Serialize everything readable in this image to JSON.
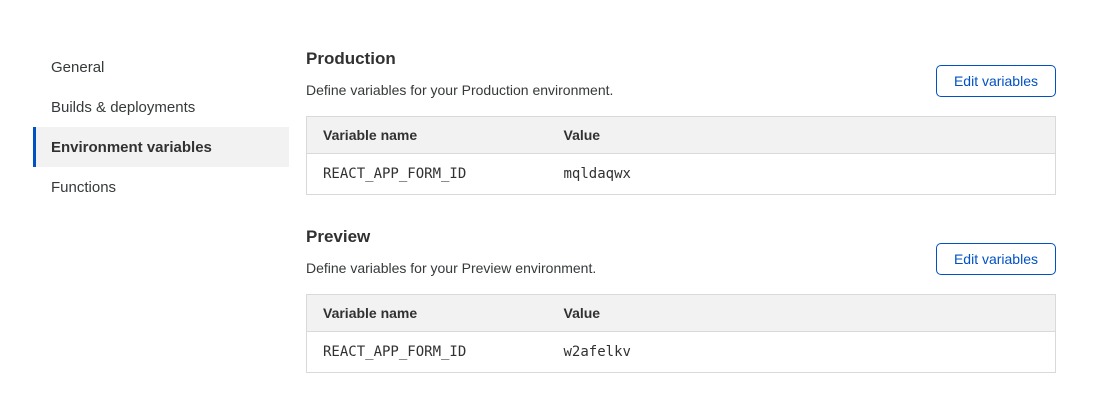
{
  "colors": {
    "accent_blue": "#0051c3",
    "selected_nav_bg": "#f2f2f2",
    "table_header_bg": "#f2f2f2",
    "table_border": "#d9d9d9",
    "heading_text": "#313131",
    "body_text": "#36393a"
  },
  "sidebar": {
    "items": [
      {
        "label": "General",
        "selected": false
      },
      {
        "label": "Builds & deployments",
        "selected": false
      },
      {
        "label": "Environment variables",
        "selected": true
      },
      {
        "label": "Functions",
        "selected": false
      }
    ]
  },
  "sections": [
    {
      "title": "Production",
      "description": "Define variables for your Production environment.",
      "button_label": "Edit variables",
      "table": {
        "columns": [
          "Variable name",
          "Value"
        ],
        "rows": [
          {
            "name": "REACT_APP_FORM_ID",
            "value": "mqldaqwx"
          }
        ]
      }
    },
    {
      "title": "Preview",
      "description": "Define variables for your Preview environment.",
      "button_label": "Edit variables",
      "table": {
        "columns": [
          "Variable name",
          "Value"
        ],
        "rows": [
          {
            "name": "REACT_APP_FORM_ID",
            "value": "w2afelkv"
          }
        ]
      }
    }
  ]
}
